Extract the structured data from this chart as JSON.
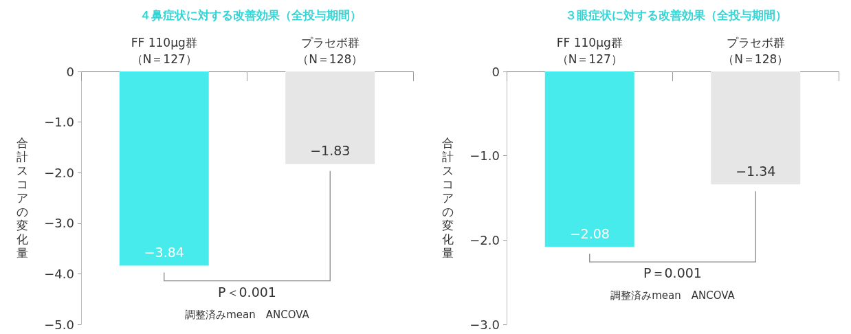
{
  "chart_data": [
    {
      "type": "bar",
      "title": "４鼻症状に対する改善効果（全投与期間）",
      "ylabel": "合計スコアの変化量",
      "categories": [
        "FF 110μg群（N＝127）",
        "プラセボ群（N＝128）"
      ],
      "series": [
        {
          "color": "#48ebeb",
          "values": [
            -3.84,
            null
          ]
        },
        {
          "color": "#e6e6e6",
          "values": [
            null,
            -1.83
          ]
        }
      ],
      "value_labels": [
        "−3.84",
        "−1.83"
      ],
      "ylim": [
        -5,
        0
      ],
      "yticks": [
        {
          "value": -5,
          "label": "−5.0"
        },
        {
          "value": -4,
          "label": "−4.0"
        },
        {
          "value": -3,
          "label": "−3.0"
        },
        {
          "value": -2,
          "label": "−2.0"
        },
        {
          "value": -1,
          "label": "−1.0"
        },
        0
      ],
      "annotations": [
        "P＜0.001",
        "調整済みmean　ANCOVA"
      ],
      "grid": false
    },
    {
      "type": "bar",
      "title": "３眼症状に対する改善効果（全投与期間）",
      "ylabel": "合計スコアの変化量",
      "categories": [
        "FF 110μg群（N＝127）",
        "プラセボ群（N＝128）"
      ],
      "series": [
        {
          "color": "#48ebeb",
          "values": [
            -2.08,
            null
          ]
        },
        {
          "color": "#e6e6e6",
          "values": [
            null,
            -1.34
          ]
        }
      ],
      "value_labels": [
        "−2.08",
        "−1.34"
      ],
      "ylim": [
        -3,
        0
      ],
      "yticks": [
        {
          "value": -3,
          "label": "−3.0"
        },
        {
          "value": -2,
          "label": "−2.0"
        },
        {
          "value": -1,
          "label": "−1.0"
        },
        0
      ],
      "annotations": [
        "P＝0.001",
        "調整済みmean　ANCOVA"
      ],
      "grid": false
    }
  ]
}
